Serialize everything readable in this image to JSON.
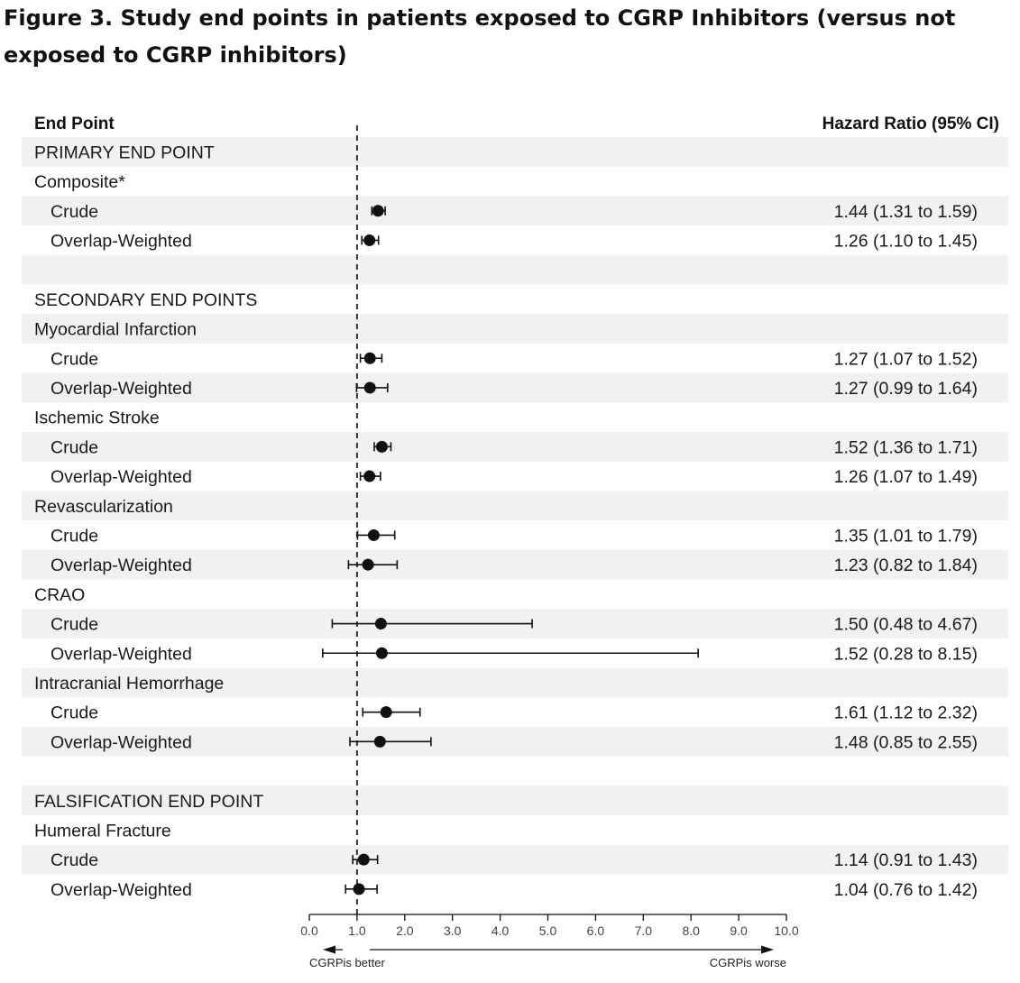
{
  "title": "Figure 3. Study end points in patients exposed to CGRP Inhibitors (versus not exposed to CGRP inhibitors)",
  "colors": {
    "band": "#f0f2f0",
    "ink": "#111111",
    "reference_line": "#333333"
  },
  "chart_data": {
    "type": "forest",
    "columns": {
      "label": "End Point",
      "estimate": "Hazard Ratio (95% CI)"
    },
    "xlim": [
      0,
      10
    ],
    "xticks": [
      0,
      1,
      2,
      3,
      4,
      5,
      6,
      7,
      8,
      9,
      10
    ],
    "xtick_labels": [
      "0.0",
      "1.0",
      "2.0",
      "3.0",
      "4.0",
      "5.0",
      "6.0",
      "7.0",
      "8.0",
      "9.0",
      "10.0"
    ],
    "reference_value": 1,
    "direction_labels": {
      "left": "CGRPis better",
      "right": "CGRPis worse"
    },
    "rows": [
      {
        "kind": "section",
        "label": "PRIMARY END POINT"
      },
      {
        "kind": "group",
        "label": "Composite*"
      },
      {
        "kind": "estimate",
        "label": "Crude",
        "hr": 1.44,
        "lo": 1.31,
        "hi": 1.59,
        "text": "1.44 (1.31 to 1.59)"
      },
      {
        "kind": "estimate",
        "label": "Overlap-Weighted",
        "hr": 1.26,
        "lo": 1.1,
        "hi": 1.45,
        "text": "1.26 (1.10 to 1.45)"
      },
      {
        "kind": "blank",
        "label": ""
      },
      {
        "kind": "section",
        "label": "SECONDARY END POINTS"
      },
      {
        "kind": "group",
        "label": "Myocardial Infarction"
      },
      {
        "kind": "estimate",
        "label": "Crude",
        "hr": 1.27,
        "lo": 1.07,
        "hi": 1.52,
        "text": "1.27 (1.07 to 1.52)"
      },
      {
        "kind": "estimate",
        "label": "Overlap-Weighted",
        "hr": 1.27,
        "lo": 0.99,
        "hi": 1.64,
        "text": "1.27 (0.99 to 1.64)"
      },
      {
        "kind": "group",
        "label": "Ischemic Stroke"
      },
      {
        "kind": "estimate",
        "label": "Crude",
        "hr": 1.52,
        "lo": 1.36,
        "hi": 1.71,
        "text": "1.52 (1.36 to 1.71)"
      },
      {
        "kind": "estimate",
        "label": "Overlap-Weighted",
        "hr": 1.26,
        "lo": 1.07,
        "hi": 1.49,
        "text": "1.26 (1.07 to 1.49)"
      },
      {
        "kind": "group",
        "label": "Revascularization"
      },
      {
        "kind": "estimate",
        "label": "Crude",
        "hr": 1.35,
        "lo": 1.01,
        "hi": 1.79,
        "text": "1.35 (1.01 to 1.79)"
      },
      {
        "kind": "estimate",
        "label": "Overlap-Weighted",
        "hr": 1.23,
        "lo": 0.82,
        "hi": 1.84,
        "text": "1.23 (0.82 to 1.84)"
      },
      {
        "kind": "group",
        "label": "CRAO"
      },
      {
        "kind": "estimate",
        "label": "Crude",
        "hr": 1.5,
        "lo": 0.48,
        "hi": 4.67,
        "text": "1.50 (0.48 to 4.67)"
      },
      {
        "kind": "estimate",
        "label": "Overlap-Weighted",
        "hr": 1.52,
        "lo": 0.28,
        "hi": 8.15,
        "text": "1.52 (0.28 to 8.15)"
      },
      {
        "kind": "group",
        "label": "Intracranial Hemorrhage"
      },
      {
        "kind": "estimate",
        "label": "Crude",
        "hr": 1.61,
        "lo": 1.12,
        "hi": 2.32,
        "text": "1.61 (1.12 to 2.32)"
      },
      {
        "kind": "estimate",
        "label": "Overlap-Weighted",
        "hr": 1.48,
        "lo": 0.85,
        "hi": 2.55,
        "text": "1.48 (0.85 to 2.55)"
      },
      {
        "kind": "blank",
        "label": ""
      },
      {
        "kind": "section",
        "label": "FALSIFICATION END POINT"
      },
      {
        "kind": "group",
        "label": "Humeral Fracture"
      },
      {
        "kind": "estimate",
        "label": "Crude",
        "hr": 1.14,
        "lo": 0.91,
        "hi": 1.43,
        "text": "1.14 (0.91 to 1.43)"
      },
      {
        "kind": "estimate",
        "label": "Overlap-Weighted",
        "hr": 1.04,
        "lo": 0.76,
        "hi": 1.42,
        "text": "1.04 (0.76 to 1.42)"
      }
    ]
  }
}
